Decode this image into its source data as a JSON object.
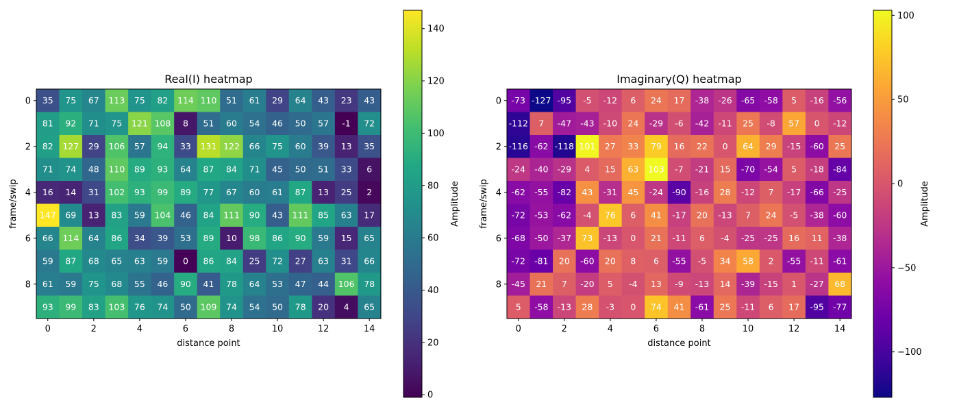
{
  "chart_data": [
    {
      "type": "heatmap",
      "title": "Real(I) heatmap",
      "xlabel": "distance point",
      "ylabel": "frame/swip",
      "colormap": "viridis",
      "x": [
        0,
        1,
        2,
        3,
        4,
        5,
        6,
        7,
        8,
        9,
        10,
        11,
        12,
        13,
        14
      ],
      "y": [
        0,
        1,
        2,
        3,
        4,
        5,
        6,
        7,
        8,
        9
      ],
      "x_ticks": [
        0,
        2,
        4,
        6,
        8,
        10,
        12,
        14
      ],
      "y_ticks": [
        0,
        2,
        4,
        6,
        8
      ],
      "values": [
        [
          35,
          75,
          67,
          113,
          75,
          82,
          114,
          110,
          51,
          61,
          29,
          64,
          43,
          23,
          43
        ],
        [
          81,
          92,
          71,
          75,
          121,
          108,
          8,
          51,
          60,
          54,
          46,
          50,
          57,
          -1,
          72
        ],
        [
          82,
          127,
          29,
          106,
          57,
          94,
          33,
          131,
          122,
          66,
          75,
          60,
          39,
          13,
          35
        ],
        [
          71,
          74,
          48,
          110,
          89,
          93,
          64,
          87,
          84,
          71,
          45,
          50,
          51,
          33,
          6
        ],
        [
          16,
          14,
          31,
          102,
          93,
          99,
          89,
          77,
          67,
          60,
          61,
          87,
          13,
          25,
          2
        ],
        [
          147,
          69,
          13,
          83,
          59,
          104,
          46,
          84,
          111,
          90,
          43,
          111,
          85,
          63,
          17
        ],
        [
          66,
          114,
          64,
          86,
          34,
          39,
          53,
          89,
          10,
          98,
          86,
          90,
          59,
          15,
          65
        ],
        [
          59,
          87,
          68,
          65,
          63,
          59,
          0,
          86,
          84,
          25,
          72,
          27,
          63,
          31,
          66
        ],
        [
          61,
          59,
          75,
          68,
          55,
          46,
          90,
          41,
          78,
          64,
          53,
          47,
          44,
          106,
          78
        ],
        [
          93,
          99,
          83,
          103,
          76,
          74,
          50,
          109,
          74,
          54,
          50,
          78,
          20,
          4,
          65
        ]
      ],
      "colorbar": {
        "label": "Amplitude",
        "range": [
          -1,
          147
        ],
        "ticks": [
          0,
          20,
          40,
          60,
          80,
          100,
          120,
          140
        ]
      }
    },
    {
      "type": "heatmap",
      "title": "Imaginary(Q) heatmap",
      "xlabel": "distance point",
      "ylabel": "frame/swip",
      "colormap": "plasma",
      "x": [
        0,
        1,
        2,
        3,
        4,
        5,
        6,
        7,
        8,
        9,
        10,
        11,
        12,
        13,
        14
      ],
      "y": [
        0,
        1,
        2,
        3,
        4,
        5,
        6,
        7,
        8,
        9
      ],
      "x_ticks": [
        0,
        2,
        4,
        6,
        8,
        10,
        12,
        14
      ],
      "y_ticks": [
        0,
        2,
        4,
        6,
        8
      ],
      "values": [
        [
          -73,
          -127,
          -95,
          -5,
          -12,
          6,
          24,
          17,
          -38,
          -26,
          -65,
          -58,
          5,
          -16,
          -56
        ],
        [
          -112,
          7,
          -47,
          -43,
          -10,
          24,
          -29,
          -6,
          -42,
          -11,
          25,
          -8,
          57,
          0,
          -12
        ],
        [
          -116,
          -62,
          -118,
          101,
          27,
          33,
          79,
          16,
          22,
          0,
          64,
          29,
          -15,
          -60,
          25
        ],
        [
          -24,
          -40,
          -29,
          4,
          15,
          63,
          103,
          -7,
          -21,
          15,
          -70,
          -54,
          5,
          -18,
          -84
        ],
        [
          -62,
          -55,
          -82,
          43,
          -31,
          45,
          -24,
          -90,
          -16,
          28,
          -12,
          7,
          -17,
          -66,
          -25
        ],
        [
          -72,
          -53,
          -62,
          -4,
          76,
          6,
          41,
          -17,
          20,
          -13,
          7,
          24,
          -5,
          -38,
          -60
        ],
        [
          -68,
          -50,
          -37,
          73,
          -13,
          0,
          21,
          -11,
          6,
          -4,
          -25,
          -25,
          16,
          11,
          -38
        ],
        [
          -72,
          -81,
          20,
          -60,
          20,
          8,
          6,
          -55,
          -5,
          34,
          58,
          2,
          -55,
          -11,
          -61
        ],
        [
          -45,
          21,
          7,
          -20,
          5,
          -4,
          13,
          -9,
          -13,
          14,
          -39,
          -15,
          1,
          -27,
          68
        ],
        [
          5,
          -58,
          -13,
          28,
          -3,
          0,
          74,
          41,
          -61,
          25,
          -11,
          6,
          17,
          -95,
          -77
        ]
      ],
      "colorbar": {
        "label": "Amplitude",
        "range": [
          -127,
          103
        ],
        "ticks": [
          -100,
          -50,
          0,
          50,
          100
        ]
      }
    }
  ]
}
